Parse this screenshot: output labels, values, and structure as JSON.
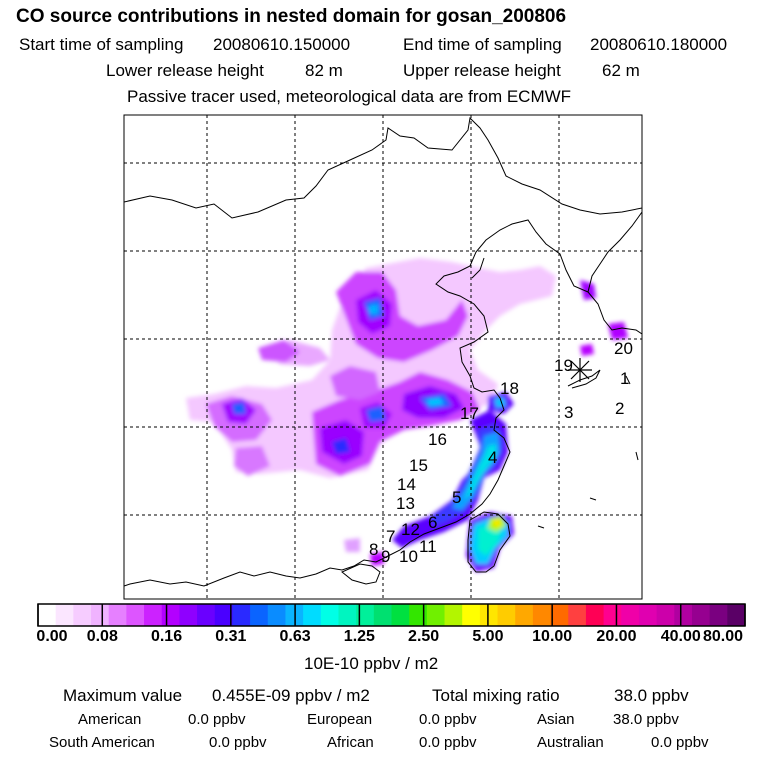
{
  "header": {
    "title": "CO  source contributions in nested domain for gosan_200806",
    "start_label": "Start time of sampling",
    "start_value": "20080610.150000",
    "end_label": "End time of sampling",
    "end_value": "20080610.180000",
    "lower_label": "Lower release height",
    "lower_value": "82 m",
    "upper_label": "Upper release height",
    "upper_value": "62 m",
    "note": "Passive tracer used, meteorological data are from ECMWF"
  },
  "map": {
    "receptor_symbol": "star",
    "trajectory_labels": [
      "1",
      "2",
      "3",
      "4",
      "5",
      "6",
      "7",
      "8",
      "9",
      "10",
      "11",
      "12",
      "13",
      "14",
      "15",
      "16",
      "17",
      "18",
      "19",
      "20"
    ]
  },
  "colorbar": {
    "tick_labels": [
      "0.00",
      "0.08",
      "0.16",
      "0.31",
      "0.63",
      "1.25",
      "2.50",
      "5.00",
      "10.00",
      "20.00",
      "40.00",
      "80.00"
    ],
    "colors": [
      "#ffffff",
      "#fbe6ff",
      "#f6ccff",
      "#f0b3ff",
      "#e680ff",
      "#dd55ff",
      "#cc22ff",
      "#b300ff",
      "#8f00ff",
      "#6a00ff",
      "#4a00ff",
      "#2a2aff",
      "#0a64ff",
      "#0a8cff",
      "#0ab4ff",
      "#00dcff",
      "#00ffe6",
      "#00f5c0",
      "#00f09a",
      "#00e070",
      "#00e040",
      "#33e600",
      "#70f000",
      "#b3f500",
      "#ffff00",
      "#ffe600",
      "#ffcc00",
      "#ffa800",
      "#ff8800",
      "#ff6a00",
      "#ff4040",
      "#ff0055",
      "#ff0090",
      "#f000a8",
      "#e000b0",
      "#cc00aa",
      "#b000a0",
      "#960090",
      "#7a0080",
      "#5a0066"
    ],
    "unit": "10E-10 ppbv / m2"
  },
  "footer": {
    "max_label": "Maximum value",
    "max_value": "0.455E-09 ppbv / m2",
    "total_label": "Total mixing ratio",
    "total_value": "38.0 ppbv",
    "regions": [
      {
        "name": "American",
        "value": "0.0 ppbv"
      },
      {
        "name": "European",
        "value": "0.0 ppbv"
      },
      {
        "name": "Asian",
        "value": "38.0 ppbv"
      },
      {
        "name": "South American",
        "value": "0.0 ppbv"
      },
      {
        "name": "African",
        "value": "0.0 ppbv"
      },
      {
        "name": "Australian",
        "value": "0.0 ppbv"
      }
    ]
  }
}
